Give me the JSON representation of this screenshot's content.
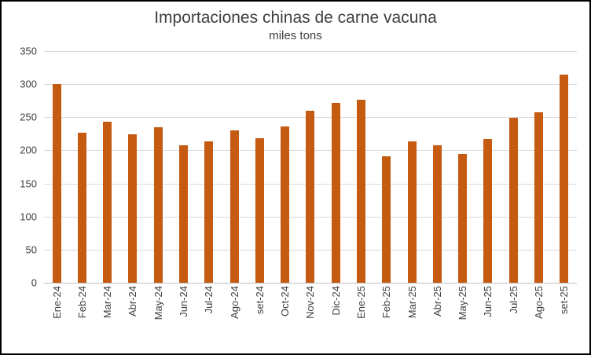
{
  "chart_data": {
    "type": "bar",
    "title": "Importaciones chinas de carne vacuna",
    "subtitle": "miles tons",
    "categories": [
      "Ene-24",
      "Feb-24",
      "Mar-24",
      "Abr-24",
      "May-24",
      "Jun-24",
      "Jul-24",
      "Ago-24",
      "set-24",
      "Oct-24",
      "Nov-24",
      "Dic-24",
      "Ene-25",
      "Feb-25",
      "Mar-25",
      "Abr-25",
      "May-25",
      "Jun-25",
      "Jul-25",
      "Ago-25",
      "set-25"
    ],
    "values": [
      300,
      227,
      243,
      224,
      235,
      208,
      214,
      230,
      218,
      236,
      260,
      272,
      277,
      191,
      213,
      208,
      195,
      217,
      249,
      257,
      315
    ],
    "xlabel": "",
    "ylabel": "",
    "ylim": [
      0,
      350
    ],
    "ytick_step": 50,
    "grid": true,
    "legend": "none",
    "bar_color": "#C55A11",
    "gridline_color": "#D9D9D9",
    "axis_line_color": "#BFBFBF",
    "text_color": "#404040"
  }
}
